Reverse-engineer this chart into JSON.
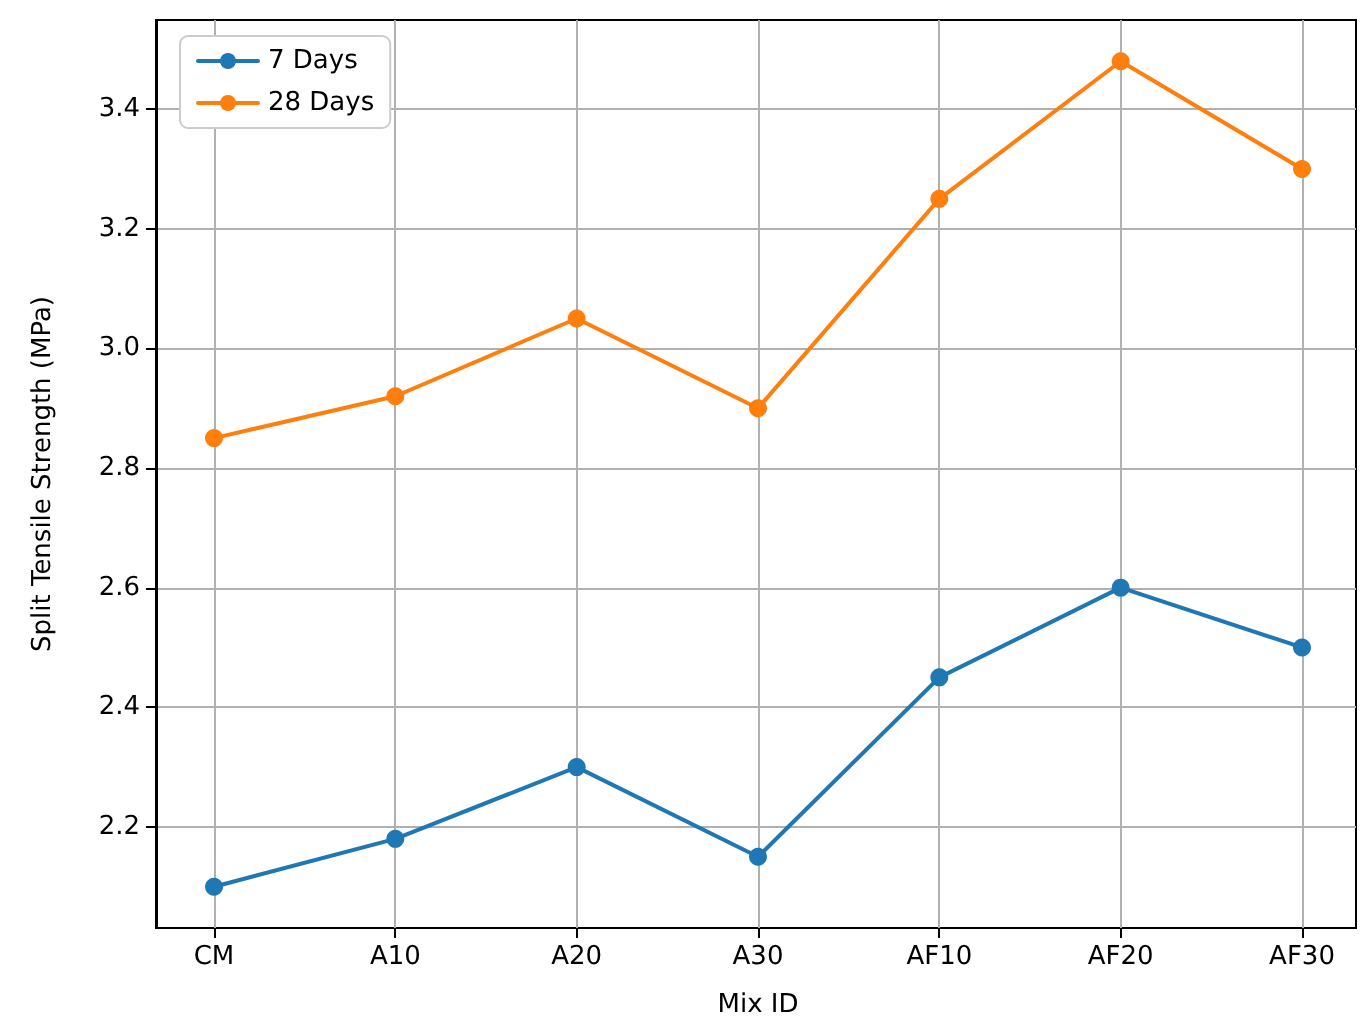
{
  "chart_data": {
    "type": "line",
    "xlabel": "Mix ID",
    "ylabel": "Split Tensile Strength (MPa)",
    "categories": [
      "CM",
      "A10",
      "A20",
      "A30",
      "AF10",
      "AF20",
      "AF30"
    ],
    "series": [
      {
        "name": "7 Days",
        "color": "#1f77b4",
        "values": [
          2.1,
          2.18,
          2.3,
          2.15,
          2.45,
          2.6,
          2.5
        ]
      },
      {
        "name": "28 Days",
        "color": "#ff7f0e",
        "values": [
          2.85,
          2.92,
          3.05,
          2.9,
          3.25,
          3.48,
          3.3
        ]
      }
    ],
    "ylim": [
      2.031,
      3.549
    ],
    "yticks": [
      2.2,
      2.4,
      2.6,
      2.8,
      {
        "value": 3.0,
        "label": "3.0"
      },
      3.2,
      3.4
    ],
    "grid": true,
    "legend": "top left",
    "marker": "circle",
    "line_style": "solid"
  }
}
